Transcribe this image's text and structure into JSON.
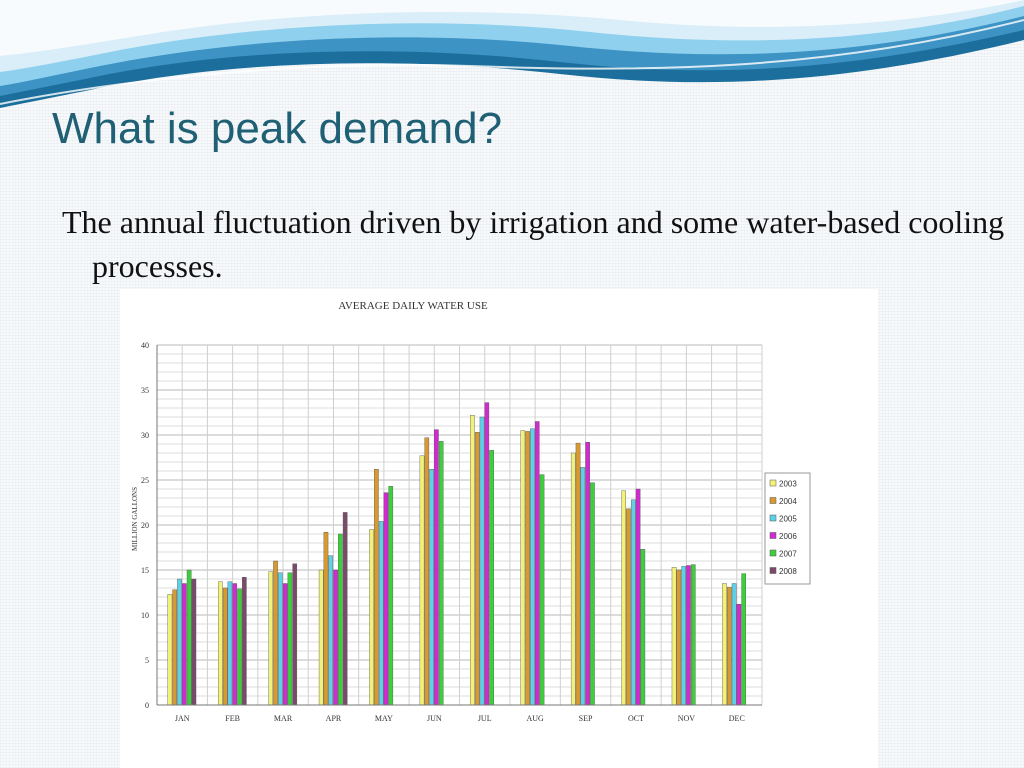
{
  "slide": {
    "title": "What is peak demand?",
    "bullet": "The annual fluctuation driven by irrigation and some water-based cooling processes."
  },
  "colors": {
    "title": "#1f6075",
    "swoosh_dark": "#1c6f9c",
    "swoosh_light": "#8fd0ee"
  },
  "chart_data": {
    "type": "bar",
    "title": "AVERAGE DAILY WATER USE",
    "xlabel": "",
    "ylabel": "MILLION GALLONS",
    "ylim": [
      0,
      40
    ],
    "yticks": [
      0,
      5,
      10,
      15,
      20,
      25,
      30,
      35,
      40
    ],
    "grid": true,
    "legend_position": "right",
    "categories": [
      "JAN",
      "FEB",
      "MAR",
      "APR",
      "MAY",
      "JUN",
      "JUL",
      "AUG",
      "SEP",
      "OCT",
      "NOV",
      "DEC"
    ],
    "series": [
      {
        "name": "2003",
        "color": "#f2f27a",
        "values": [
          12.3,
          13.7,
          14.8,
          15.0,
          19.5,
          27.7,
          32.2,
          30.5,
          28.0,
          23.8,
          15.3,
          13.5
        ]
      },
      {
        "name": "2004",
        "color": "#d89a30",
        "values": [
          12.8,
          13.0,
          16.0,
          19.2,
          26.2,
          29.7,
          30.3,
          30.4,
          29.1,
          21.8,
          15.0,
          13.1
        ]
      },
      {
        "name": "2005",
        "color": "#5fd0e8",
        "values": [
          14.0,
          13.7,
          14.7,
          16.6,
          20.4,
          26.2,
          32.0,
          30.7,
          26.4,
          22.8,
          15.4,
          13.5
        ]
      },
      {
        "name": "2006",
        "color": "#d02ad0",
        "values": [
          13.5,
          13.5,
          13.5,
          15.0,
          23.6,
          30.6,
          33.6,
          31.5,
          29.2,
          24.0,
          15.5,
          11.2
        ]
      },
      {
        "name": "2007",
        "color": "#3ccf3c",
        "values": [
          15.0,
          12.9,
          14.7,
          19.0,
          24.3,
          29.3,
          28.3,
          25.6,
          24.7,
          17.3,
          15.6,
          14.6
        ]
      },
      {
        "name": "2008",
        "color": "#7a4a6a",
        "values": [
          14.0,
          14.2,
          15.7,
          21.4,
          null,
          null,
          null,
          null,
          null,
          null,
          null,
          null
        ]
      }
    ]
  }
}
